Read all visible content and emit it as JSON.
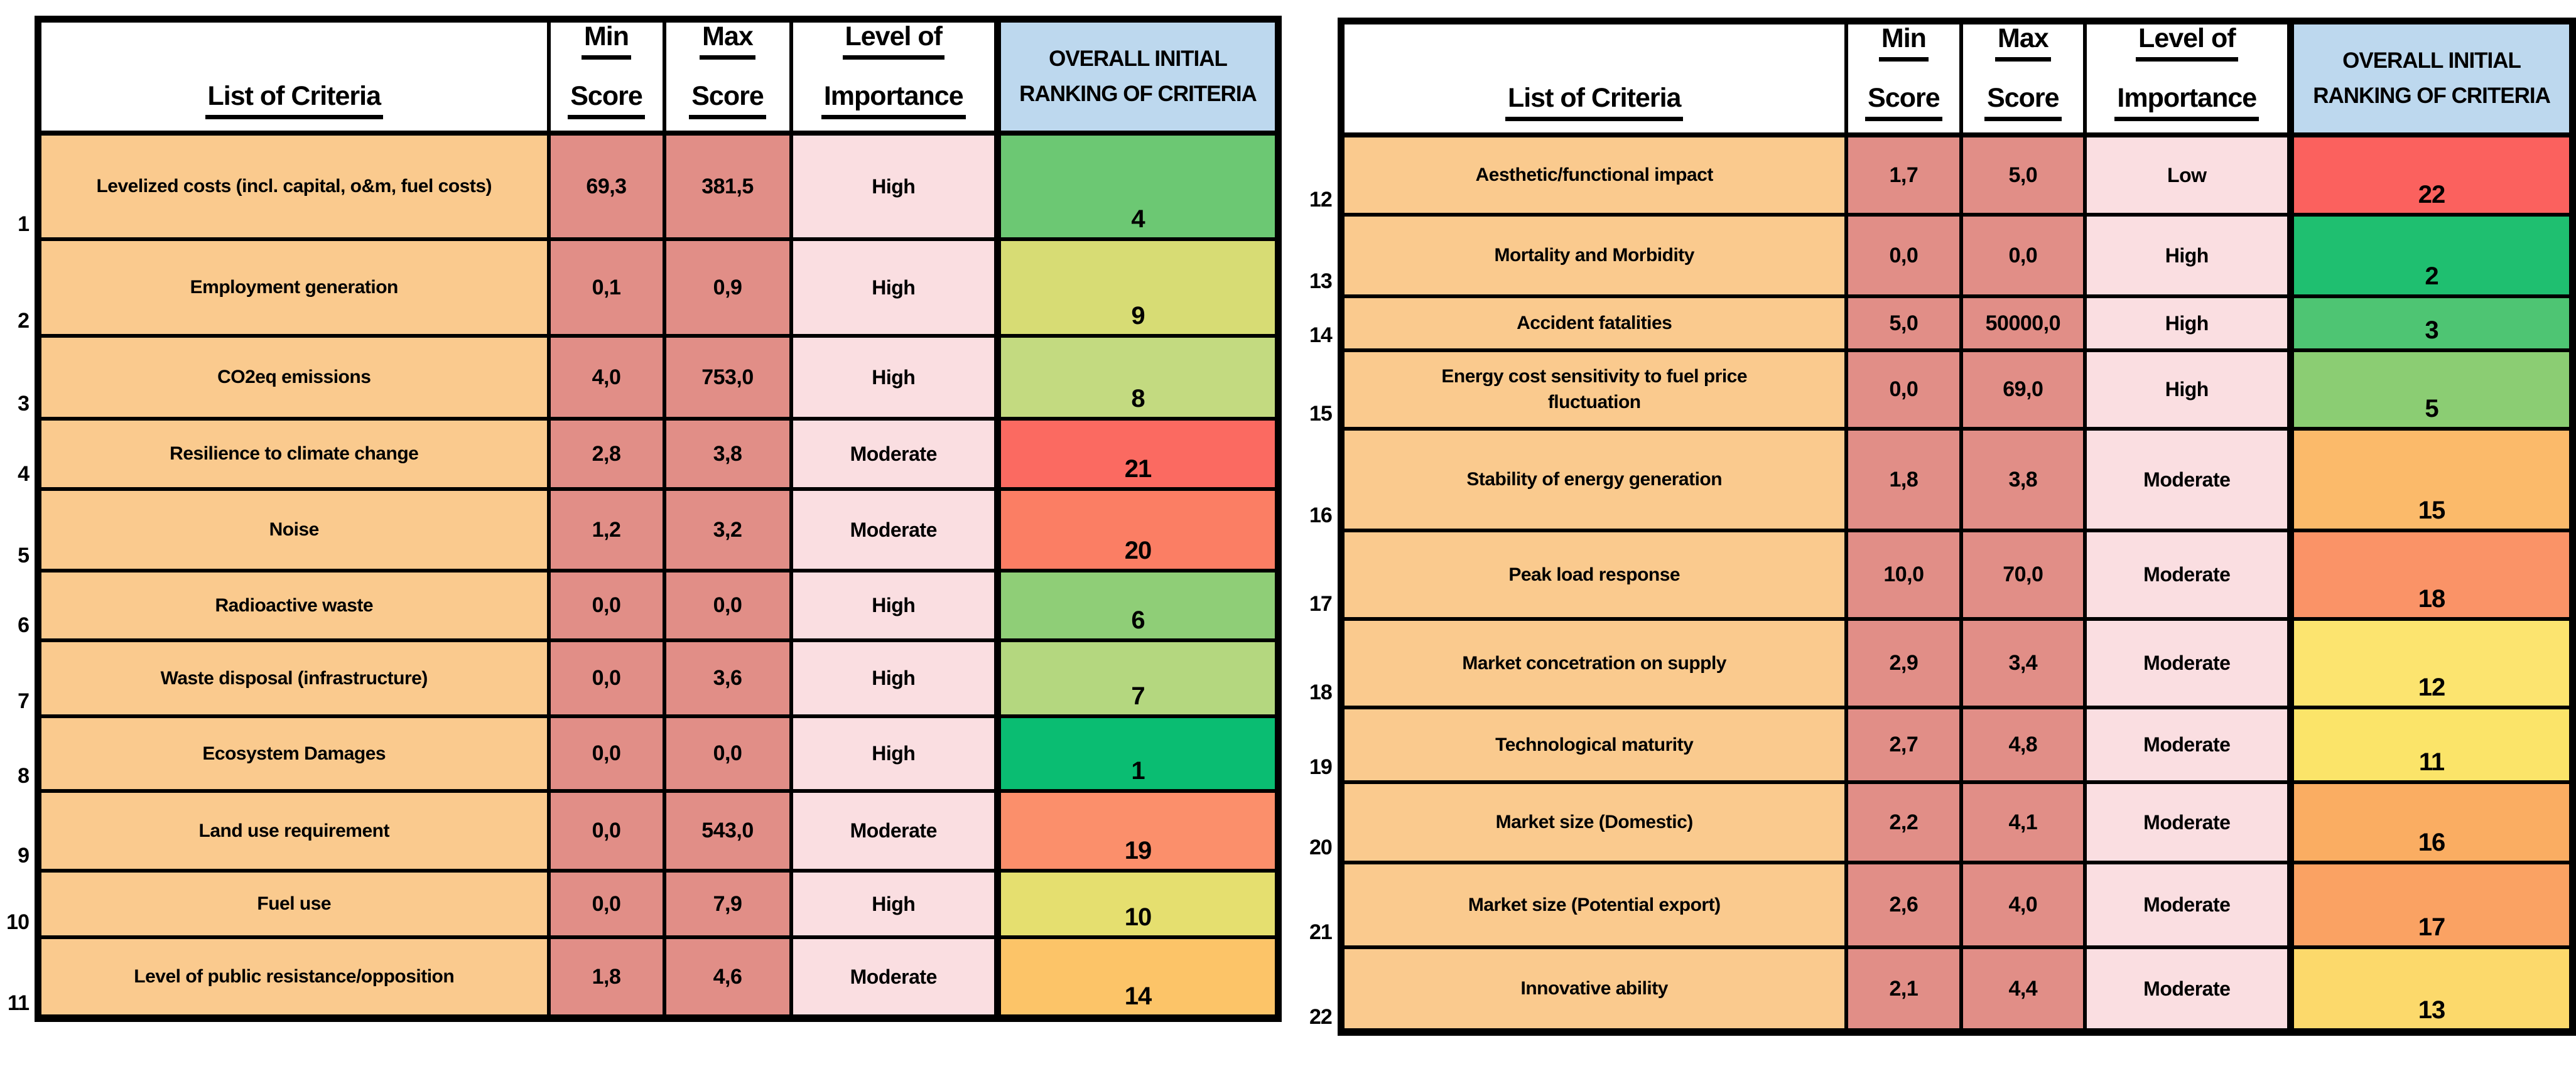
{
  "palette": {
    "background": "#FFFFFF",
    "border": "#000000",
    "text": "#000000",
    "criteria_bg": "#FACA8E",
    "score_bg": "#E18E87",
    "importance_bg": "#FADEE1",
    "rank_header_bg": "#BDD8EE"
  },
  "headers": {
    "criteria": "List of Criteria",
    "min": [
      "Min",
      "Score"
    ],
    "max": [
      "Max",
      "Score"
    ],
    "importance": [
      "Level of",
      "Importance"
    ],
    "ranking": [
      "OVERALL INITIAL",
      "RANKING OF CRITERIA"
    ]
  },
  "tables": [
    {
      "name": "criteria-1-11",
      "rows": [
        {
          "num": "1",
          "criteria": "Levelized costs (incl. capital, o&m, fuel costs)",
          "min": "69,3",
          "max": "381,5",
          "importance": "High",
          "rank": "4",
          "rank_color": "#6CC873"
        },
        {
          "num": "2",
          "criteria": "Employment generation",
          "min": "0,1",
          "max": "0,9",
          "importance": "High",
          "rank": "9",
          "rank_color": "#D7DC74"
        },
        {
          "num": "3",
          "criteria": "CO2eq emissions",
          "min": "4,0",
          "max": "753,0",
          "importance": "High",
          "rank": "8",
          "rank_color": "#C3DA80"
        },
        {
          "num": "4",
          "criteria": "Resilience to climate change",
          "min": "2,8",
          "max": "3,8",
          "importance": "Moderate",
          "rank": "21",
          "rank_color": "#FB6A61"
        },
        {
          "num": "5",
          "criteria": "Noise",
          "min": "1,2",
          "max": "3,2",
          "importance": "Moderate",
          "rank": "20",
          "rank_color": "#FB7E64"
        },
        {
          "num": "6",
          "criteria": "Radioactive waste",
          "min": "0,0",
          "max": "0,0",
          "importance": "High",
          "rank": "6",
          "rank_color": "#8FCE77"
        },
        {
          "num": "7",
          "criteria": "Waste disposal (infrastructure)",
          "min": "0,0",
          "max": "3,6",
          "importance": "High",
          "rank": "7",
          "rank_color": "#B4D77F"
        },
        {
          "num": "8",
          "criteria": "Ecosystem Damages",
          "min": "0,0",
          "max": "0,0",
          "importance": "High",
          "rank": "1",
          "rank_color": "#0ABD72"
        },
        {
          "num": "9",
          "criteria": "Land use requirement",
          "min": "0,0",
          "max": "543,0",
          "importance": "Moderate",
          "rank": "19",
          "rank_color": "#FB8F6B"
        },
        {
          "num": "10",
          "criteria": "Fuel use",
          "min": "0,0",
          "max": "7,9",
          "importance": "High",
          "rank": "10",
          "rank_color": "#E5DF6F"
        },
        {
          "num": "11",
          "criteria": "Level of public resistance/opposition",
          "min": "1,8",
          "max": "4,6",
          "importance": "Moderate",
          "rank": "14",
          "rank_color": "#FCC468"
        }
      ]
    },
    {
      "name": "criteria-12-22",
      "rows": [
        {
          "num": "12",
          "criteria": "Aesthetic/functional impact",
          "min": "1,7",
          "max": "5,0",
          "importance": "Low",
          "rank": "22",
          "rank_color": "#FB615E"
        },
        {
          "num": "13",
          "criteria": "Mortality and Morbidity",
          "min": "0,0",
          "max": "0,0",
          "importance": "High",
          "rank": "2",
          "rank_color": "#1FBF70"
        },
        {
          "num": "14",
          "criteria": "Accident fatalities",
          "min": "5,0",
          "max": "50000,0",
          "importance": "High",
          "rank": "3",
          "rank_color": "#4EC573"
        },
        {
          "num": "15",
          "criteria": "Energy cost sensitivity to fuel price\nfluctuation",
          "min": "0,0",
          "max": "69,0",
          "importance": "High",
          "rank": "5",
          "rank_color": "#8BCD73"
        },
        {
          "num": "16",
          "criteria": "Stability of energy generation",
          "min": "1,8",
          "max": "3,8",
          "importance": "Moderate",
          "rank": "15",
          "rank_color": "#FBBA6A"
        },
        {
          "num": "17",
          "criteria": "Peak load response",
          "min": "10,0",
          "max": "70,0",
          "importance": "Moderate",
          "rank": "18",
          "rank_color": "#FA9367"
        },
        {
          "num": "18",
          "criteria": "Market concetration on supply",
          "min": "2,9",
          "max": "3,4",
          "importance": "Moderate",
          "rank": "12",
          "rank_color": "#FCE46F"
        },
        {
          "num": "19",
          "criteria": "Technological maturity",
          "min": "2,7",
          "max": "4,8",
          "importance": "Moderate",
          "rank": "11",
          "rank_color": "#FBE469"
        },
        {
          "num": "20",
          "criteria": "Market size (Domestic)",
          "min": "2,2",
          "max": "4,1",
          "importance": "Moderate",
          "rank": "16",
          "rank_color": "#FAAD62"
        },
        {
          "num": "21",
          "criteria": "Market size (Potential export)",
          "min": "2,6",
          "max": "4,0",
          "importance": "Moderate",
          "rank": "17",
          "rank_color": "#FAA263"
        },
        {
          "num": "22",
          "criteria": "Innovative ability",
          "min": "2,1",
          "max": "4,4",
          "importance": "Moderate",
          "rank": "13",
          "rank_color": "#FCD96B"
        }
      ]
    }
  ]
}
